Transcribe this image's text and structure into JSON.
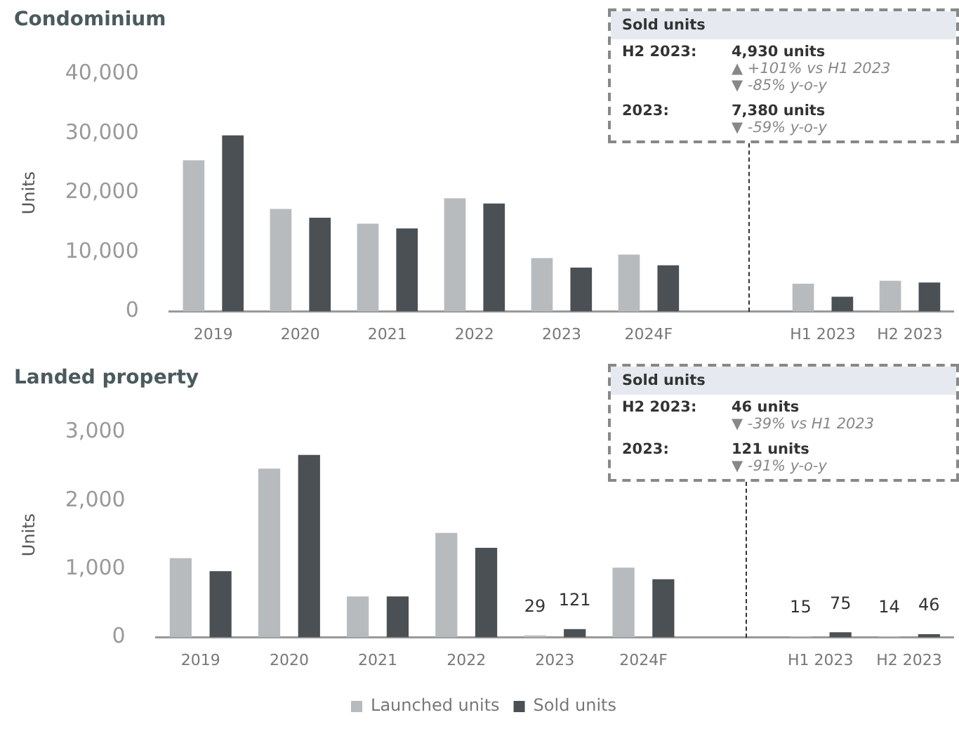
{
  "chart_data": [
    {
      "type": "bar",
      "title": "Condominium",
      "ylabel": "Units",
      "categories": [
        "2019",
        "2020",
        "2021",
        "2022",
        "2023",
        "2024F",
        null,
        "H1 2023",
        "H2 2023"
      ],
      "series": [
        {
          "color": "#b8bbbe",
          "values": [
            25500,
            17300,
            14800,
            19100,
            9000,
            9600,
            null,
            4700,
            5200
          ]
        },
        {
          "color": "#4b5055",
          "values": [
            29700,
            15800,
            14000,
            18200,
            7400,
            7800,
            null,
            2500,
            4900
          ]
        }
      ],
      "ylim": [
        0,
        40000
      ],
      "yticks": [
        {
          "value": 0,
          "label": "0"
        },
        {
          "value": 10000,
          "label": "10,000"
        },
        {
          "value": 20000,
          "label": "20,000"
        },
        {
          "value": 30000,
          "label": "30,000"
        },
        {
          "value": 40000,
          "label": "40,000"
        }
      ],
      "grid": false,
      "legend": false,
      "annotations": [
        "Sold units",
        "H2 2023:",
        "4,930 units",
        "▲ +101% vs H1 2023",
        "▼ -85% y-o-y",
        "2023:",
        "7,380 units",
        "▼ -59% y-o-y"
      ]
    },
    {
      "type": "bar",
      "title": "Landed property",
      "ylabel": "Units",
      "categories": [
        "2019",
        "2020",
        "2021",
        "2022",
        "2023",
        "2024F",
        null,
        "H1 2023",
        "H2 2023"
      ],
      "series": [
        {
          "name": "Launched units",
          "color": "#b8bbbe",
          "values": [
            1160,
            2470,
            600,
            1530,
            29,
            1020,
            null,
            15,
            14
          ],
          "value_labels": [
            null,
            null,
            null,
            null,
            "29",
            null,
            null,
            "15",
            "14"
          ]
        },
        {
          "name": "Sold units",
          "color": "#4b5055",
          "values": [
            970,
            2670,
            600,
            1310,
            121,
            850,
            null,
            75,
            46
          ],
          "value_labels": [
            null,
            null,
            null,
            null,
            "121",
            null,
            null,
            "75",
            "46"
          ]
        }
      ],
      "ylim": [
        0,
        3000
      ],
      "yticks": [
        {
          "value": 0,
          "label": "0"
        },
        {
          "value": 1000,
          "label": "1,000"
        },
        {
          "value": 2000,
          "label": "2,000"
        },
        {
          "value": 3000,
          "label": "3,000"
        }
      ],
      "grid": false,
      "legend": "bottom",
      "annotations": [
        "Sold units",
        "H2 2023:",
        "46 units",
        "▼ -39% vs H1 2023",
        "2023:",
        "121 units",
        "▼ -91% y-o-y"
      ]
    }
  ]
}
